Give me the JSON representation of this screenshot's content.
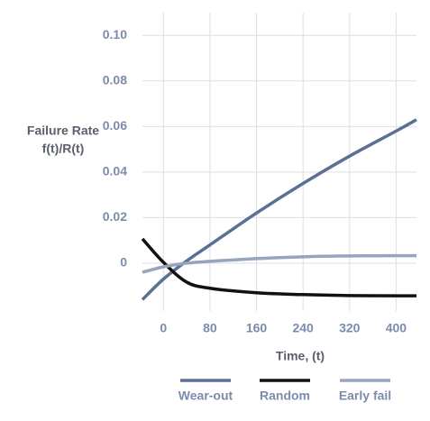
{
  "chart_data": {
    "type": "line",
    "ylabel": [
      "Failure Rate",
      "f(t)/R(t)"
    ],
    "xlabel": "Time, (t)",
    "x": [
      -36,
      0,
      40,
      80,
      160,
      240,
      320,
      400,
      435
    ],
    "series": [
      {
        "name": "Wear-out",
        "color": "#5c6f95",
        "values": [
          -0.016,
          -0.007,
          0.001,
          0.008,
          0.022,
          0.035,
          0.047,
          0.058,
          0.063
        ]
      },
      {
        "name": "Random",
        "color": "#111111",
        "values": [
          0.0107,
          0.0004,
          -0.0083,
          -0.011,
          -0.013,
          -0.0138,
          -0.0142,
          -0.0143,
          -0.0143
        ]
      },
      {
        "name": "Early fail",
        "color": "#97a4bd",
        "values": [
          -0.004,
          -0.0016,
          0,
          0.0008,
          0.002,
          0.0028,
          0.0032,
          0.0033,
          0.0033
        ]
      }
    ],
    "xlim": [
      -36,
      435
    ],
    "xticks": [
      0,
      80,
      160,
      240,
      320,
      400
    ],
    "ylim": [
      -0.021,
      0.11
    ],
    "yticks": [
      0,
      0.02,
      0.04,
      0.06,
      0.08,
      {
        "value": 0.1,
        "label": "0.10"
      }
    ],
    "grid": true
  }
}
